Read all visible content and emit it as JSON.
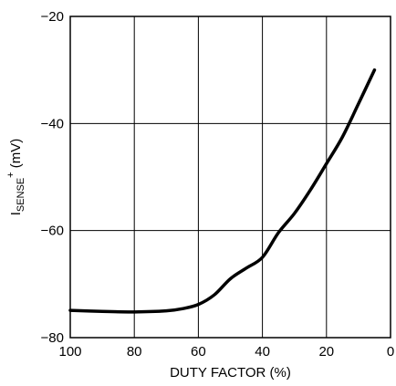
{
  "chart_data": {
    "type": "line",
    "title": "",
    "xlabel": "DUTY FACTOR (%)",
    "ylabel": {
      "main": "I",
      "sub": "SENSE",
      "sup": "+",
      "unit": " (mV)"
    },
    "xlim": [
      100,
      0
    ],
    "ylim": [
      -80,
      -20
    ],
    "x_reversed": true,
    "x_ticks": [
      100,
      80,
      60,
      40,
      20,
      0
    ],
    "x_tick_labels": [
      "100",
      "80",
      "60",
      "40",
      "20",
      "0"
    ],
    "y_ticks": [
      -20,
      -40,
      -60,
      -80
    ],
    "y_tick_labels": [
      "−20",
      "−40",
      "−60",
      "−80"
    ],
    "grid": true,
    "series": [
      {
        "x": [
          100,
          90,
          80,
          70,
          65,
          60,
          55,
          50,
          45,
          40,
          35,
          30,
          25,
          20,
          15,
          10,
          5
        ],
        "y": [
          -74.9,
          -75.1,
          -75.2,
          -75.0,
          -74.6,
          -73.8,
          -72.0,
          -69.0,
          -67.0,
          -65.0,
          -60.4,
          -56.8,
          -52.4,
          -47.5,
          -42.5,
          -36.3,
          -30.0
        ]
      }
    ]
  }
}
